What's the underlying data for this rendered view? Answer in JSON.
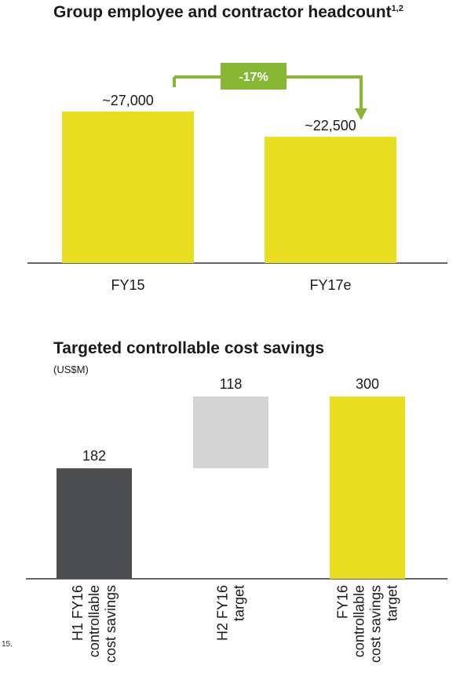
{
  "footnote_fragment": "15.",
  "chart_data": [
    {
      "type": "bar",
      "title": "Group employee and contractor headcount",
      "title_superscript": "1,2",
      "categories": [
        "FY15",
        "FY17e"
      ],
      "values": [
        27000,
        22500
      ],
      "data_labels": [
        "~27,000",
        "~22,500"
      ],
      "ylim": [
        0,
        27000
      ],
      "grid": false,
      "bar_color": "#e8de20",
      "annotation": {
        "text": "-17%",
        "color": "#86b833"
      }
    },
    {
      "type": "bar",
      "subtype": "waterfall",
      "title": "Targeted controllable cost savings",
      "unit": "(US$M)",
      "categories": [
        "H1 FY16 controllable cost savings",
        "H2 FY16 target",
        "FY16 controllable cost savings target"
      ],
      "category_lines": [
        [
          "H1 FY16",
          "controllable",
          "cost savings"
        ],
        [
          "H2 FY16",
          "target"
        ],
        [
          "FY16",
          "controllable",
          "cost savings",
          "target"
        ]
      ],
      "values": [
        182,
        118,
        300
      ],
      "bases": [
        0,
        182,
        0
      ],
      "data_labels": [
        "182",
        "118",
        "300"
      ],
      "ylim": [
        0,
        300
      ],
      "grid": false,
      "bar_colors": [
        "#4b4d4f",
        "#d4d4d4",
        "#e8de20"
      ]
    }
  ]
}
